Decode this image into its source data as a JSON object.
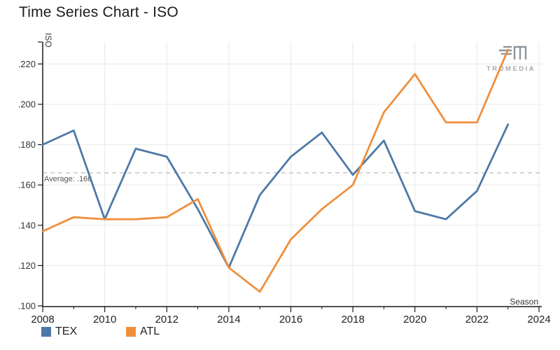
{
  "title": "Time Series Chart - ISO",
  "branding": {
    "name": "TRUMEDIA"
  },
  "chart_data": {
    "type": "line",
    "title": "Time Series Chart - ISO",
    "xlabel": "Season",
    "ylabel": "ISO",
    "x": [
      2008,
      2009,
      2010,
      2011,
      2012,
      2013,
      2014,
      2015,
      2016,
      2017,
      2018,
      2019,
      2020,
      2021,
      2022,
      2023
    ],
    "series": [
      {
        "name": "TEX",
        "color": "#4e79a7",
        "values": [
          0.18,
          0.187,
          0.143,
          0.178,
          0.174,
          0.148,
          0.119,
          0.155,
          0.174,
          0.186,
          0.165,
          0.182,
          0.147,
          0.143,
          0.157,
          0.19
        ]
      },
      {
        "name": "ATL",
        "color": "#ef8f3d",
        "values": [
          0.137,
          0.144,
          0.143,
          0.143,
          0.144,
          0.153,
          0.119,
          0.107,
          0.133,
          0.148,
          0.16,
          0.196,
          0.215,
          0.191,
          0.191,
          0.227
        ]
      }
    ],
    "average_line": {
      "label": "Average: .166",
      "value": 0.166
    },
    "xlim": [
      2008,
      2024
    ],
    "ylim": [
      0.1,
      0.231
    ],
    "x_ticks": [
      2008,
      2010,
      2012,
      2014,
      2016,
      2018,
      2020,
      2022,
      2024
    ],
    "y_ticks": [
      0.1,
      0.12,
      0.14,
      0.16,
      0.18,
      0.2,
      0.22
    ],
    "y_tick_labels": [
      ".100",
      ".120",
      ".140",
      ".160",
      ".180",
      ".200",
      ".220"
    ],
    "grid": true,
    "legend_position": "bottom-left",
    "colors": {
      "grid": "#e8e8e8",
      "axis": "#1a1a1a",
      "average": "#c0c0c0",
      "logo_gray": "#8d9499",
      "tick_label": "#333333"
    }
  }
}
